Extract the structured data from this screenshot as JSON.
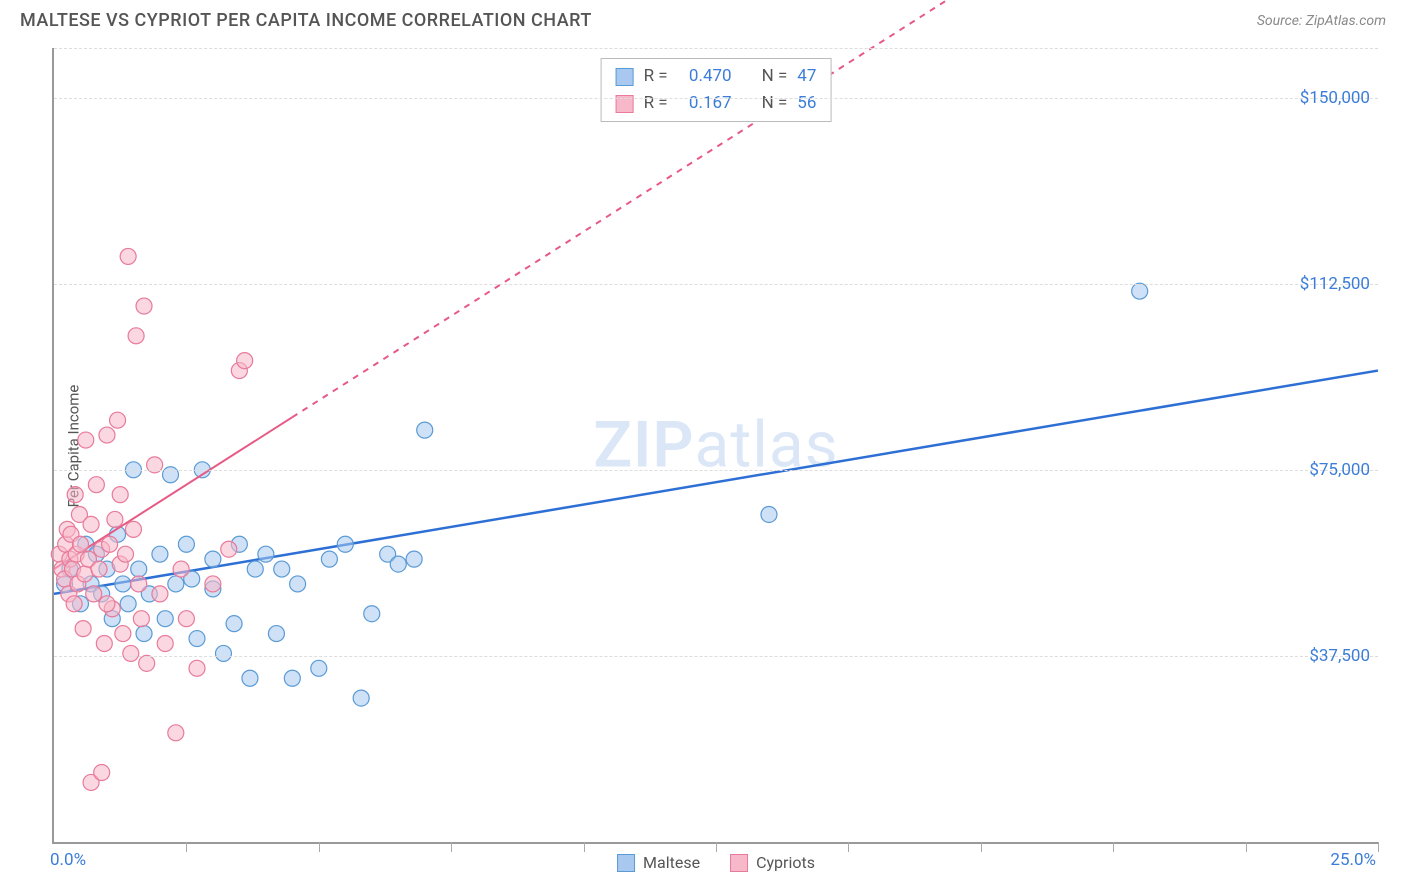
{
  "title": "MALTESE VS CYPRIOT PER CAPITA INCOME CORRELATION CHART",
  "source": "Source: ZipAtlas.com",
  "watermark": {
    "bold": "ZIP",
    "light": "atlas"
  },
  "ylabel": "Per Capita Income",
  "chart": {
    "type": "scatter",
    "background_color": "#ffffff",
    "grid_color": "#dddddd",
    "axis_color": "#999999",
    "xlim": [
      0,
      25
    ],
    "ylim": [
      0,
      160000
    ],
    "xtick_labels": [
      {
        "x": 0,
        "text": "0.0%",
        "anchor": "start"
      },
      {
        "x": 25,
        "text": "25.0%",
        "anchor": "end"
      }
    ],
    "xtick_positions": [
      2.5,
      5.0,
      7.5,
      10.0,
      12.5,
      15.0,
      17.5,
      20.0,
      22.5,
      25.0
    ],
    "ytick_labels": [
      {
        "y": 37500,
        "text": "$37,500"
      },
      {
        "y": 75000,
        "text": "$75,000"
      },
      {
        "y": 112500,
        "text": "$112,500"
      },
      {
        "y": 150000,
        "text": "$150,000"
      }
    ],
    "ygrid_positions": [
      37500,
      75000,
      112500,
      150000,
      160000
    ],
    "label_fontsize": 15,
    "tick_fontsize": 17,
    "tick_color": "#3b7dd8",
    "series": [
      {
        "name": "Maltese",
        "color_fill": "#a8c8f0",
        "color_stroke": "#5b9bd5",
        "marker_radius": 8,
        "fill_opacity": 0.55,
        "trend": {
          "m": 1800,
          "b": 50000,
          "x1": 0,
          "x2": 25,
          "stroke": "#2d6fd4",
          "width": 2.5,
          "dash": "none",
          "solid_to_x": 25
        },
        "R": "0.470",
        "N": "47",
        "points": [
          [
            0.2,
            52000
          ],
          [
            0.3,
            55000
          ],
          [
            0.5,
            48000
          ],
          [
            0.6,
            60000
          ],
          [
            0.7,
            52000
          ],
          [
            0.8,
            58000
          ],
          [
            0.9,
            50000
          ],
          [
            1.0,
            55000
          ],
          [
            1.1,
            45000
          ],
          [
            1.2,
            62000
          ],
          [
            1.3,
            52000
          ],
          [
            1.4,
            48000
          ],
          [
            1.5,
            75000
          ],
          [
            1.6,
            55000
          ],
          [
            1.7,
            42000
          ],
          [
            1.8,
            50000
          ],
          [
            2.0,
            58000
          ],
          [
            2.1,
            45000
          ],
          [
            2.2,
            74000
          ],
          [
            2.3,
            52000
          ],
          [
            2.5,
            60000
          ],
          [
            2.6,
            53000
          ],
          [
            2.7,
            41000
          ],
          [
            2.8,
            75000
          ],
          [
            3.0,
            57000
          ],
          [
            3.2,
            38000
          ],
          [
            3.4,
            44000
          ],
          [
            3.5,
            60000
          ],
          [
            3.7,
            33000
          ],
          [
            3.8,
            55000
          ],
          [
            4.0,
            58000
          ],
          [
            4.2,
            42000
          ],
          [
            4.5,
            33000
          ],
          [
            4.6,
            52000
          ],
          [
            5.0,
            35000
          ],
          [
            5.2,
            57000
          ],
          [
            5.5,
            60000
          ],
          [
            5.8,
            29000
          ],
          [
            6.0,
            46000
          ],
          [
            6.3,
            58000
          ],
          [
            6.5,
            56000
          ],
          [
            6.8,
            57000
          ],
          [
            7.0,
            83000
          ],
          [
            13.5,
            66000
          ],
          [
            20.5,
            111000
          ],
          [
            4.3,
            55000
          ],
          [
            3.0,
            51000
          ]
        ]
      },
      {
        "name": "Cypriots",
        "color_fill": "#f7b8c9",
        "color_stroke": "#e87a9a",
        "marker_radius": 8,
        "fill_opacity": 0.55,
        "trend": {
          "m": 6800,
          "b": 55000,
          "x1": 0,
          "x2": 18.2,
          "stroke": "#e65a85",
          "width": 2,
          "dash": "6,6",
          "solid_to_x": 4.5
        },
        "R": "0.167",
        "N": "56",
        "points": [
          [
            0.1,
            58000
          ],
          [
            0.15,
            55000
          ],
          [
            0.2,
            53000
          ],
          [
            0.22,
            60000
          ],
          [
            0.25,
            63000
          ],
          [
            0.28,
            50000
          ],
          [
            0.3,
            57000
          ],
          [
            0.32,
            62000
          ],
          [
            0.35,
            55000
          ],
          [
            0.38,
            48000
          ],
          [
            0.4,
            70000
          ],
          [
            0.42,
            58000
          ],
          [
            0.45,
            52000
          ],
          [
            0.48,
            66000
          ],
          [
            0.5,
            60000
          ],
          [
            0.55,
            43000
          ],
          [
            0.58,
            54000
          ],
          [
            0.6,
            81000
          ],
          [
            0.65,
            57000
          ],
          [
            0.7,
            64000
          ],
          [
            0.75,
            50000
          ],
          [
            0.8,
            72000
          ],
          [
            0.85,
            55000
          ],
          [
            0.9,
            59000
          ],
          [
            0.95,
            40000
          ],
          [
            1.0,
            82000
          ],
          [
            1.05,
            60000
          ],
          [
            1.1,
            47000
          ],
          [
            1.15,
            65000
          ],
          [
            1.2,
            85000
          ],
          [
            1.25,
            56000
          ],
          [
            1.3,
            42000
          ],
          [
            1.35,
            58000
          ],
          [
            1.4,
            118000
          ],
          [
            1.45,
            38000
          ],
          [
            1.5,
            63000
          ],
          [
            1.55,
            102000
          ],
          [
            1.6,
            52000
          ],
          [
            1.65,
            45000
          ],
          [
            1.7,
            108000
          ],
          [
            1.75,
            36000
          ],
          [
            1.9,
            76000
          ],
          [
            2.1,
            40000
          ],
          [
            2.3,
            22000
          ],
          [
            2.4,
            55000
          ],
          [
            2.7,
            35000
          ],
          [
            3.0,
            52000
          ],
          [
            3.3,
            59000
          ],
          [
            3.5,
            95000
          ],
          [
            3.6,
            97000
          ],
          [
            0.7,
            12000
          ],
          [
            0.9,
            14000
          ],
          [
            2.0,
            50000
          ],
          [
            2.5,
            45000
          ],
          [
            1.0,
            48000
          ],
          [
            1.25,
            70000
          ]
        ]
      }
    ]
  },
  "legend_top": {
    "R_label": "R =",
    "N_label": "N ="
  },
  "legend_bottom": {
    "items": [
      "Maltese",
      "Cypriots"
    ]
  }
}
